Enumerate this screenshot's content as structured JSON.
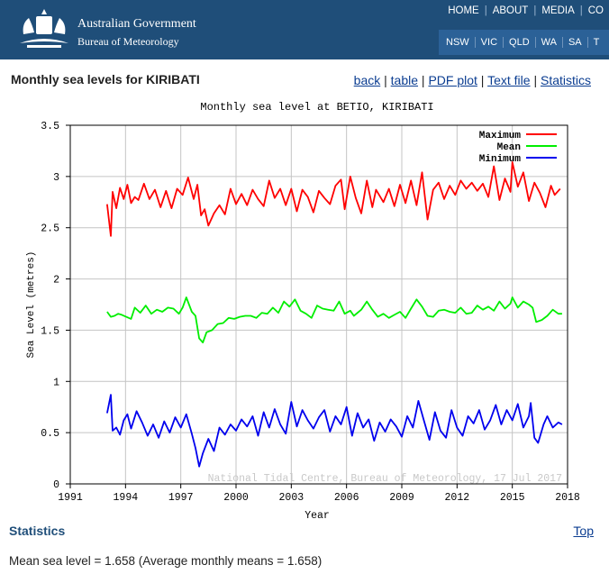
{
  "header": {
    "agency_line1": "Australian Government",
    "agency_line2": "Bureau of Meteorology",
    "top_nav": [
      "HOME",
      "ABOUT",
      "MEDIA",
      "CO"
    ],
    "states": [
      "NSW",
      "VIC",
      "QLD",
      "WA",
      "SA",
      "T"
    ],
    "colors": {
      "banner": "#1f4e79",
      "state_bar": "#2b6197"
    }
  },
  "page": {
    "title": "Monthly sea levels for KIRIBATI",
    "links": [
      "back",
      "table",
      "PDF plot",
      "Text file",
      "Statistics"
    ],
    "statistics_heading": "Statistics",
    "top_link": "Top",
    "mean_text": "Mean sea level = 1.658 (Average monthly means = 1.658)"
  },
  "chart_data": {
    "type": "line",
    "title": "Monthly sea level at BETIO, KIRIBATI",
    "xlabel": "Year",
    "ylabel": "Sea Level (metres)",
    "xlim": [
      1991,
      2018
    ],
    "ylim": [
      0,
      3.5
    ],
    "x_ticks": [
      1991,
      1994,
      1997,
      2000,
      2003,
      2006,
      2009,
      2012,
      2015,
      2018
    ],
    "y_ticks": [
      0,
      0.5,
      1,
      1.5,
      2,
      2.5,
      3,
      3.5
    ],
    "y_tick_labels": [
      "0",
      "0.5",
      "1",
      "1.5",
      "2",
      "2.5",
      "3",
      "3.5"
    ],
    "grid": true,
    "legend_position": "top-right",
    "watermark": "National Tidal Centre, Bureau of Meteorology, 17 Jul 2017",
    "series": [
      {
        "name": "Maximum",
        "color": "#ff0000",
        "points": [
          [
            1993.0,
            2.73
          ],
          [
            1993.2,
            2.42
          ],
          [
            1993.3,
            2.85
          ],
          [
            1993.5,
            2.69
          ],
          [
            1993.7,
            2.89
          ],
          [
            1993.9,
            2.78
          ],
          [
            1994.1,
            2.92
          ],
          [
            1994.3,
            2.74
          ],
          [
            1994.5,
            2.8
          ],
          [
            1994.7,
            2.77
          ],
          [
            1995.0,
            2.93
          ],
          [
            1995.3,
            2.78
          ],
          [
            1995.6,
            2.87
          ],
          [
            1995.9,
            2.7
          ],
          [
            1996.2,
            2.86
          ],
          [
            1996.5,
            2.69
          ],
          [
            1996.8,
            2.88
          ],
          [
            1997.1,
            2.82
          ],
          [
            1997.4,
            2.99
          ],
          [
            1997.7,
            2.78
          ],
          [
            1997.9,
            2.92
          ],
          [
            1998.1,
            2.62
          ],
          [
            1998.3,
            2.68
          ],
          [
            1998.5,
            2.52
          ],
          [
            1998.8,
            2.64
          ],
          [
            1999.1,
            2.72
          ],
          [
            1999.4,
            2.63
          ],
          [
            1999.7,
            2.88
          ],
          [
            2000.0,
            2.73
          ],
          [
            2000.3,
            2.83
          ],
          [
            2000.6,
            2.72
          ],
          [
            2000.9,
            2.87
          ],
          [
            2001.2,
            2.78
          ],
          [
            2001.5,
            2.71
          ],
          [
            2001.8,
            2.96
          ],
          [
            2002.1,
            2.79
          ],
          [
            2002.4,
            2.88
          ],
          [
            2002.7,
            2.72
          ],
          [
            2003.0,
            2.88
          ],
          [
            2003.3,
            2.66
          ],
          [
            2003.6,
            2.87
          ],
          [
            2003.9,
            2.8
          ],
          [
            2004.2,
            2.65
          ],
          [
            2004.5,
            2.86
          ],
          [
            2004.8,
            2.79
          ],
          [
            2005.1,
            2.73
          ],
          [
            2005.4,
            2.91
          ],
          [
            2005.7,
            2.97
          ],
          [
            2005.9,
            2.68
          ],
          [
            2006.2,
            3.0
          ],
          [
            2006.5,
            2.79
          ],
          [
            2006.8,
            2.64
          ],
          [
            2007.1,
            2.96
          ],
          [
            2007.4,
            2.7
          ],
          [
            2007.6,
            2.87
          ],
          [
            2008.0,
            2.75
          ],
          [
            2008.3,
            2.88
          ],
          [
            2008.6,
            2.71
          ],
          [
            2008.9,
            2.92
          ],
          [
            2009.2,
            2.74
          ],
          [
            2009.5,
            2.96
          ],
          [
            2009.8,
            2.72
          ],
          [
            2010.1,
            3.04
          ],
          [
            2010.4,
            2.58
          ],
          [
            2010.7,
            2.87
          ],
          [
            2011.0,
            2.94
          ],
          [
            2011.3,
            2.78
          ],
          [
            2011.6,
            2.91
          ],
          [
            2011.9,
            2.82
          ],
          [
            2012.2,
            2.96
          ],
          [
            2012.5,
            2.88
          ],
          [
            2012.8,
            2.94
          ],
          [
            2013.1,
            2.86
          ],
          [
            2013.4,
            2.93
          ],
          [
            2013.7,
            2.8
          ],
          [
            2014.0,
            3.1
          ],
          [
            2014.3,
            2.77
          ],
          [
            2014.6,
            2.98
          ],
          [
            2014.9,
            2.85
          ],
          [
            2015.0,
            3.14
          ],
          [
            2015.3,
            2.9
          ],
          [
            2015.6,
            3.04
          ],
          [
            2015.9,
            2.76
          ],
          [
            2016.2,
            2.94
          ],
          [
            2016.5,
            2.84
          ],
          [
            2016.8,
            2.7
          ],
          [
            2017.1,
            2.91
          ],
          [
            2017.3,
            2.82
          ],
          [
            2017.6,
            2.88
          ]
        ]
      },
      {
        "name": "Mean",
        "color": "#00ee00",
        "points": [
          [
            1993.0,
            1.68
          ],
          [
            1993.2,
            1.63
          ],
          [
            1993.4,
            1.64
          ],
          [
            1993.6,
            1.66
          ],
          [
            1993.8,
            1.65
          ],
          [
            1994.3,
            1.61
          ],
          [
            1994.5,
            1.72
          ],
          [
            1994.8,
            1.67
          ],
          [
            1995.1,
            1.74
          ],
          [
            1995.4,
            1.66
          ],
          [
            1995.7,
            1.7
          ],
          [
            1996.0,
            1.68
          ],
          [
            1996.3,
            1.72
          ],
          [
            1996.6,
            1.71
          ],
          [
            1996.9,
            1.66
          ],
          [
            1997.1,
            1.72
          ],
          [
            1997.3,
            1.82
          ],
          [
            1997.6,
            1.68
          ],
          [
            1997.8,
            1.64
          ],
          [
            1998.0,
            1.42
          ],
          [
            1998.2,
            1.38
          ],
          [
            1998.4,
            1.48
          ],
          [
            1998.7,
            1.5
          ],
          [
            1999.0,
            1.56
          ],
          [
            1999.3,
            1.57
          ],
          [
            1999.6,
            1.62
          ],
          [
            1999.9,
            1.61
          ],
          [
            2000.2,
            1.63
          ],
          [
            2000.5,
            1.64
          ],
          [
            2000.8,
            1.64
          ],
          [
            2001.1,
            1.62
          ],
          [
            2001.4,
            1.67
          ],
          [
            2001.7,
            1.66
          ],
          [
            2002.0,
            1.72
          ],
          [
            2002.3,
            1.67
          ],
          [
            2002.6,
            1.78
          ],
          [
            2002.9,
            1.73
          ],
          [
            2003.2,
            1.8
          ],
          [
            2003.5,
            1.69
          ],
          [
            2003.8,
            1.66
          ],
          [
            2004.1,
            1.62
          ],
          [
            2004.4,
            1.74
          ],
          [
            2004.7,
            1.71
          ],
          [
            2005.0,
            1.7
          ],
          [
            2005.3,
            1.69
          ],
          [
            2005.6,
            1.78
          ],
          [
            2005.9,
            1.66
          ],
          [
            2006.2,
            1.69
          ],
          [
            2006.4,
            1.64
          ],
          [
            2006.8,
            1.7
          ],
          [
            2007.1,
            1.78
          ],
          [
            2007.4,
            1.7
          ],
          [
            2007.7,
            1.63
          ],
          [
            2008.0,
            1.66
          ],
          [
            2008.3,
            1.62
          ],
          [
            2008.6,
            1.65
          ],
          [
            2008.9,
            1.68
          ],
          [
            2009.2,
            1.62
          ],
          [
            2009.5,
            1.71
          ],
          [
            2009.8,
            1.8
          ],
          [
            2010.1,
            1.73
          ],
          [
            2010.4,
            1.64
          ],
          [
            2010.7,
            1.63
          ],
          [
            2011.0,
            1.69
          ],
          [
            2011.3,
            1.7
          ],
          [
            2011.6,
            1.68
          ],
          [
            2011.9,
            1.67
          ],
          [
            2012.2,
            1.72
          ],
          [
            2012.5,
            1.66
          ],
          [
            2012.8,
            1.67
          ],
          [
            2013.1,
            1.74
          ],
          [
            2013.4,
            1.7
          ],
          [
            2013.7,
            1.73
          ],
          [
            2014.0,
            1.69
          ],
          [
            2014.3,
            1.78
          ],
          [
            2014.6,
            1.71
          ],
          [
            2014.9,
            1.76
          ],
          [
            2015.0,
            1.82
          ],
          [
            2015.3,
            1.72
          ],
          [
            2015.6,
            1.78
          ],
          [
            2015.9,
            1.75
          ],
          [
            2016.1,
            1.72
          ],
          [
            2016.3,
            1.58
          ],
          [
            2016.6,
            1.6
          ],
          [
            2016.9,
            1.64
          ],
          [
            2017.2,
            1.7
          ],
          [
            2017.5,
            1.66
          ],
          [
            2017.7,
            1.66
          ]
        ]
      },
      {
        "name": "Minimum",
        "color": "#0000ee",
        "points": [
          [
            1993.0,
            0.69
          ],
          [
            1993.2,
            0.87
          ],
          [
            1993.3,
            0.52
          ],
          [
            1993.5,
            0.55
          ],
          [
            1993.7,
            0.48
          ],
          [
            1993.9,
            0.62
          ],
          [
            1994.1,
            0.68
          ],
          [
            1994.3,
            0.54
          ],
          [
            1994.6,
            0.71
          ],
          [
            1994.9,
            0.6
          ],
          [
            1995.2,
            0.47
          ],
          [
            1995.5,
            0.58
          ],
          [
            1995.8,
            0.45
          ],
          [
            1996.1,
            0.61
          ],
          [
            1996.4,
            0.5
          ],
          [
            1996.7,
            0.65
          ],
          [
            1997.0,
            0.55
          ],
          [
            1997.3,
            0.68
          ],
          [
            1997.6,
            0.49
          ],
          [
            1997.8,
            0.35
          ],
          [
            1998.0,
            0.17
          ],
          [
            1998.2,
            0.3
          ],
          [
            1998.5,
            0.44
          ],
          [
            1998.8,
            0.32
          ],
          [
            1999.1,
            0.55
          ],
          [
            1999.4,
            0.48
          ],
          [
            1999.7,
            0.58
          ],
          [
            2000.0,
            0.52
          ],
          [
            2000.3,
            0.63
          ],
          [
            2000.6,
            0.56
          ],
          [
            2000.9,
            0.66
          ],
          [
            2001.2,
            0.47
          ],
          [
            2001.5,
            0.7
          ],
          [
            2001.8,
            0.55
          ],
          [
            2002.1,
            0.73
          ],
          [
            2002.4,
            0.58
          ],
          [
            2002.7,
            0.49
          ],
          [
            2003.0,
            0.8
          ],
          [
            2003.3,
            0.56
          ],
          [
            2003.6,
            0.72
          ],
          [
            2003.9,
            0.62
          ],
          [
            2004.2,
            0.54
          ],
          [
            2004.5,
            0.65
          ],
          [
            2004.8,
            0.72
          ],
          [
            2005.1,
            0.51
          ],
          [
            2005.4,
            0.66
          ],
          [
            2005.7,
            0.58
          ],
          [
            2006.0,
            0.75
          ],
          [
            2006.3,
            0.47
          ],
          [
            2006.6,
            0.69
          ],
          [
            2006.9,
            0.55
          ],
          [
            2007.2,
            0.63
          ],
          [
            2007.5,
            0.42
          ],
          [
            2007.8,
            0.6
          ],
          [
            2008.1,
            0.51
          ],
          [
            2008.4,
            0.63
          ],
          [
            2008.7,
            0.56
          ],
          [
            2009.0,
            0.46
          ],
          [
            2009.3,
            0.66
          ],
          [
            2009.6,
            0.55
          ],
          [
            2009.9,
            0.81
          ],
          [
            2010.2,
            0.62
          ],
          [
            2010.5,
            0.43
          ],
          [
            2010.8,
            0.7
          ],
          [
            2011.1,
            0.52
          ],
          [
            2011.4,
            0.45
          ],
          [
            2011.7,
            0.72
          ],
          [
            2012.0,
            0.55
          ],
          [
            2012.3,
            0.47
          ],
          [
            2012.6,
            0.66
          ],
          [
            2012.9,
            0.59
          ],
          [
            2013.2,
            0.72
          ],
          [
            2013.5,
            0.53
          ],
          [
            2013.8,
            0.62
          ],
          [
            2014.1,
            0.77
          ],
          [
            2014.4,
            0.58
          ],
          [
            2014.7,
            0.72
          ],
          [
            2015.0,
            0.62
          ],
          [
            2015.3,
            0.78
          ],
          [
            2015.6,
            0.55
          ],
          [
            2015.9,
            0.66
          ],
          [
            2016.0,
            0.79
          ],
          [
            2016.2,
            0.45
          ],
          [
            2016.4,
            0.4
          ],
          [
            2016.7,
            0.58
          ],
          [
            2016.9,
            0.66
          ],
          [
            2017.2,
            0.55
          ],
          [
            2017.5,
            0.6
          ],
          [
            2017.7,
            0.58
          ]
        ]
      }
    ]
  }
}
